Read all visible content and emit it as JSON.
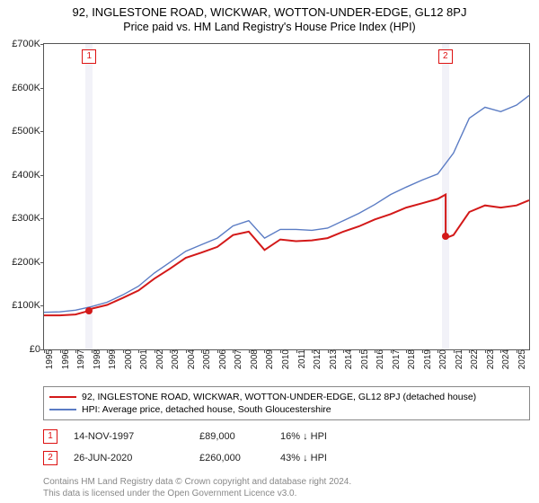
{
  "title_line1": "92, INGLESTONE ROAD, WICKWAR, WOTTON-UNDER-EDGE, GL12 8PJ",
  "title_line2": "Price paid vs. HM Land Registry's House Price Index (HPI)",
  "chart": {
    "type": "line",
    "background_color": "#ffffff",
    "border_color": "#555555",
    "ylabel_prefix": "£",
    "ylim": [
      0,
      700000
    ],
    "yticks": [
      0,
      100000,
      200000,
      300000,
      400000,
      500000,
      600000,
      700000
    ],
    "ytick_labels": [
      "£0",
      "£100K",
      "£200K",
      "£300K",
      "£400K",
      "£500K",
      "£600K",
      "£700K"
    ],
    "xlim": [
      1995,
      2025.8
    ],
    "xticks": [
      1995,
      1996,
      1997,
      1998,
      1999,
      2000,
      2001,
      2002,
      2003,
      2004,
      2005,
      2006,
      2007,
      2008,
      2009,
      2010,
      2011,
      2012,
      2013,
      2014,
      2015,
      2016,
      2017,
      2018,
      2019,
      2020,
      2021,
      2022,
      2023,
      2024,
      2025
    ],
    "xtick_labels": [
      "1995",
      "1996",
      "1997",
      "1998",
      "1999",
      "2000",
      "2001",
      "2002",
      "2003",
      "2004",
      "2005",
      "2006",
      "2007",
      "2008",
      "2009",
      "2010",
      "2011",
      "2012",
      "2013",
      "2014",
      "2015",
      "2016",
      "2017",
      "2018",
      "2019",
      "2020",
      "2021",
      "2022",
      "2023",
      "2024",
      "2025"
    ],
    "point_band_color": "#f2f2f8",
    "series": [
      {
        "key": "property",
        "color": "#d31919",
        "width": 2,
        "x": [
          1995,
          1996,
          1997,
          1997.9,
          1998,
          1999,
          2000,
          2001,
          2002,
          2003,
          2004,
          2005,
          2006,
          2007,
          2008,
          2009,
          2010,
          2011,
          2012,
          2013,
          2014,
          2015,
          2016,
          2017,
          2018,
          2019,
          2020,
          2020.5,
          2020.5,
          2021,
          2022,
          2023,
          2024,
          2025,
          2025.8
        ],
        "y": [
          78000,
          78000,
          80000,
          89000,
          93000,
          102000,
          118000,
          135000,
          162000,
          185000,
          210000,
          222000,
          235000,
          262000,
          270000,
          228000,
          252000,
          248000,
          250000,
          255000,
          270000,
          282000,
          298000,
          310000,
          325000,
          335000,
          345000,
          355000,
          255000,
          262000,
          315000,
          330000,
          325000,
          330000,
          342000
        ]
      },
      {
        "key": "hpi",
        "color": "#5b7cc4",
        "width": 1.4,
        "x": [
          1995,
          1996,
          1997,
          1998,
          1999,
          2000,
          2001,
          2002,
          2003,
          2004,
          2005,
          2006,
          2007,
          2008,
          2009,
          2010,
          2011,
          2012,
          2013,
          2014,
          2015,
          2016,
          2017,
          2018,
          2019,
          2020,
          2021,
          2022,
          2023,
          2024,
          2025,
          2025.8
        ],
        "y": [
          85000,
          86000,
          90000,
          98000,
          108000,
          125000,
          145000,
          175000,
          200000,
          225000,
          240000,
          255000,
          283000,
          295000,
          255000,
          275000,
          275000,
          273000,
          278000,
          295000,
          312000,
          332000,
          355000,
          372000,
          388000,
          402000,
          450000,
          530000,
          555000,
          545000,
          560000,
          582000
        ]
      }
    ],
    "sale_points": [
      {
        "n": "1",
        "x": 1997.87,
        "y": 89000,
        "marker_color": "#d31919"
      },
      {
        "n": "2",
        "x": 2020.48,
        "y": 260000,
        "marker_color": "#d31919"
      }
    ],
    "label_fontsize": 11,
    "tick_fontsize": 10
  },
  "legend": {
    "rows": [
      {
        "color": "#d31919",
        "width": 2,
        "label": "92, INGLESTONE ROAD, WICKWAR, WOTTON-UNDER-EDGE, GL12 8PJ (detached house)"
      },
      {
        "color": "#5b7cc4",
        "width": 1.4,
        "label": "HPI: Average price, detached house, South Gloucestershire"
      }
    ]
  },
  "sales": [
    {
      "n": "1",
      "date": "14-NOV-1997",
      "price": "£89,000",
      "pct": "16%",
      "arrow": "↓",
      "rel": "HPI"
    },
    {
      "n": "2",
      "date": "26-JUN-2020",
      "price": "£260,000",
      "pct": "43%",
      "arrow": "↓",
      "rel": "HPI"
    }
  ],
  "footer_line1": "Contains HM Land Registry data © Crown copyright and database right 2024.",
  "footer_line2": "This data is licensed under the Open Government Licence v3.0."
}
